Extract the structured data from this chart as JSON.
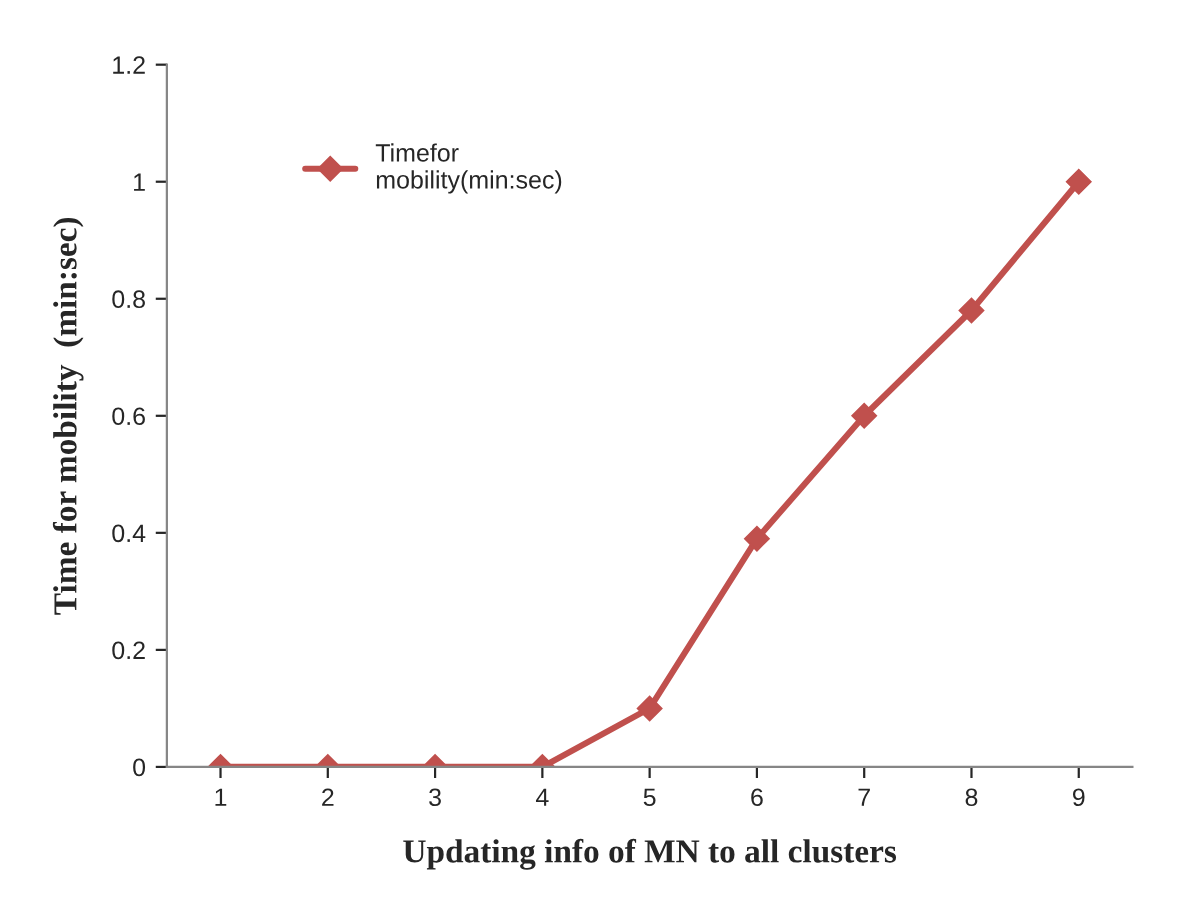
{
  "chart_data": {
    "type": "line",
    "xlabel": "Updating info of MN to all clusters",
    "ylabel": "Time for mobility  (min:sec)",
    "categories": [
      "1",
      "2",
      "3",
      "4",
      "5",
      "6",
      "7",
      "8",
      "9"
    ],
    "series": [
      {
        "name": "Timefor\nmobility(min:sec)",
        "color": "#c0504d",
        "values": [
          0,
          0,
          0,
          0,
          0.1,
          0.39,
          0.6,
          0.78,
          1.0
        ]
      }
    ],
    "ylim": [
      0,
      1.2
    ],
    "yticks": [
      0,
      0.2,
      0.4,
      0.6,
      0.8,
      1,
      1.2
    ],
    "marker": "diamond",
    "line_style": "solid",
    "grid": false,
    "legend": "top left"
  }
}
